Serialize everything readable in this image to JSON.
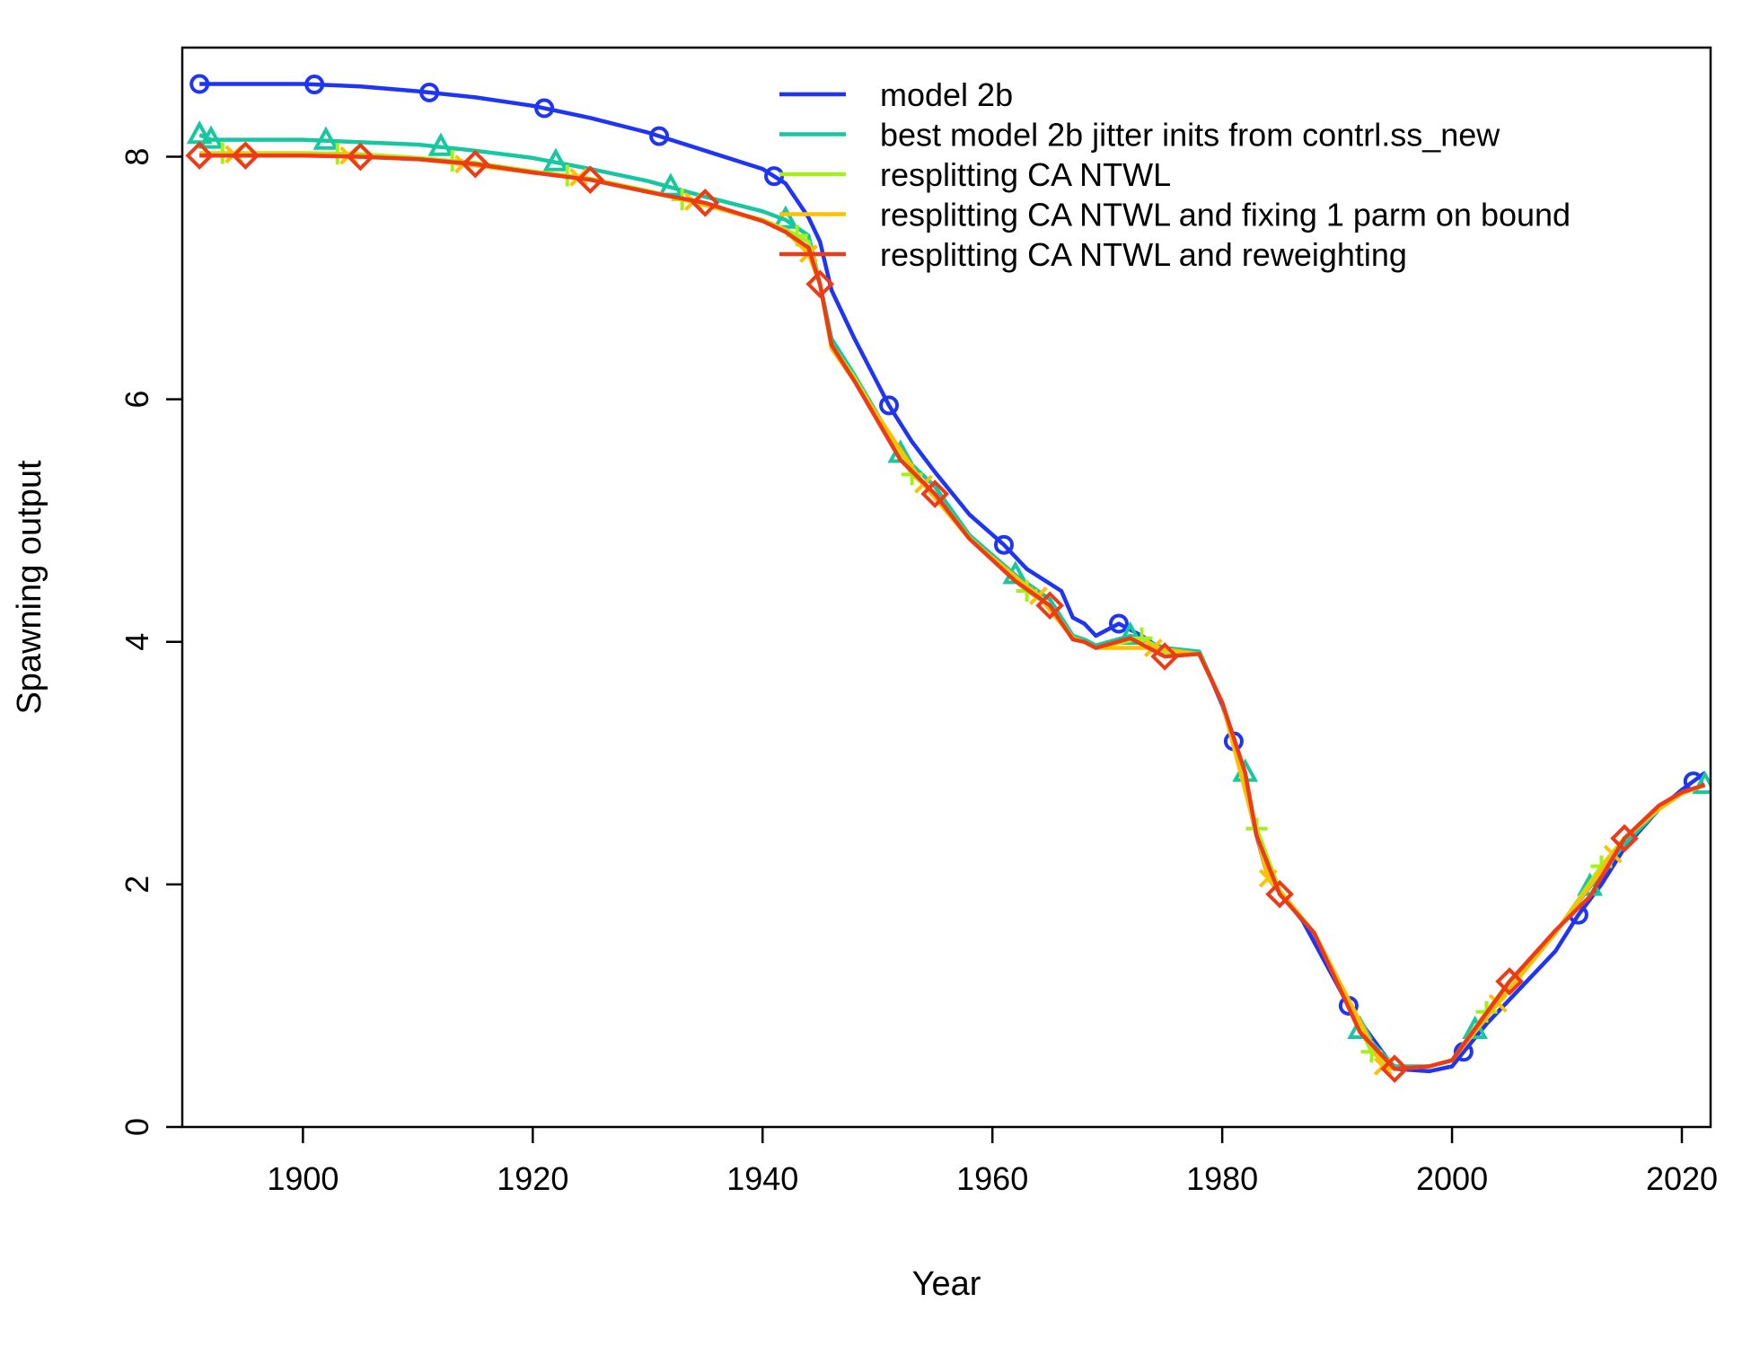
{
  "chart_data": {
    "type": "line",
    "title": "",
    "xlabel": "Year",
    "ylabel": "Spawning output",
    "xlim": [
      1889.5,
      2022.5
    ],
    "ylim": [
      0,
      8.9
    ],
    "xticks": [
      1900,
      1920,
      1940,
      1960,
      1980,
      2000,
      2020
    ],
    "yticks": [
      0,
      2,
      4,
      6,
      8
    ],
    "grid": false,
    "legend_position": "top-right",
    "series": [
      {
        "name": "model 2b",
        "color": "#1F35F5",
        "marker": "circle",
        "marker_x": [
          1891,
          1901,
          1911,
          1921,
          1931,
          1941,
          1951,
          1961,
          1971,
          1981,
          1991,
          2001,
          2011,
          2021
        ],
        "x": [
          1891,
          1895,
          1900,
          1905,
          1910,
          1915,
          1920,
          1925,
          1930,
          1935,
          1940,
          1942,
          1944,
          1945,
          1946,
          1948,
          1951,
          1953,
          1955,
          1958,
          1961,
          1963,
          1966,
          1967,
          1968,
          1969,
          1971,
          1973,
          1975,
          1978,
          1980,
          1981,
          1983,
          1984,
          1987,
          1991,
          1995,
          1998,
          2000,
          2001,
          2003,
          2006,
          2009,
          2011,
          2013,
          2015,
          2018,
          2020,
          2022
        ],
        "y": [
          8.6,
          8.6,
          8.6,
          8.58,
          8.54,
          8.49,
          8.42,
          8.32,
          8.2,
          8.05,
          7.9,
          7.78,
          7.5,
          7.3,
          6.9,
          6.5,
          5.95,
          5.65,
          5.4,
          5.05,
          4.8,
          4.6,
          4.42,
          4.2,
          4.15,
          4.05,
          4.15,
          4.05,
          3.92,
          3.92,
          3.48,
          3.18,
          2.4,
          2.05,
          1.7,
          1.0,
          0.48,
          0.46,
          0.5,
          0.62,
          0.85,
          1.15,
          1.45,
          1.75,
          2.0,
          2.3,
          2.62,
          2.78,
          2.92
        ]
      },
      {
        "name": "best model 2b jitter inits from contrl.ss_new",
        "color": "#17C7A0",
        "marker": "triangle",
        "marker_x": [
          1891,
          1892,
          1902,
          1912,
          1922,
          1932,
          1942,
          1952,
          1962,
          1972,
          1982,
          1992,
          2002,
          2012,
          2022
        ],
        "x": [
          1891,
          1892,
          1900,
          1910,
          1915,
          1920,
          1925,
          1930,
          1935,
          1940,
          1942,
          1944,
          1945,
          1946,
          1948,
          1952,
          1955,
          1958,
          1962,
          1965,
          1967,
          1968,
          1969,
          1972,
          1975,
          1978,
          1980,
          1982,
          1983,
          1985,
          1988,
          1992,
          1995,
          1998,
          2000,
          2002,
          2005,
          2009,
          2012,
          2015,
          2018,
          2020,
          2022
        ],
        "y": [
          8.18,
          8.14,
          8.14,
          8.1,
          8.05,
          7.99,
          7.9,
          7.8,
          7.67,
          7.55,
          7.48,
          7.35,
          6.95,
          6.5,
          6.2,
          5.55,
          5.28,
          4.88,
          4.55,
          4.35,
          4.05,
          4.02,
          3.97,
          4.05,
          3.95,
          3.92,
          3.5,
          2.92,
          2.4,
          1.95,
          1.6,
          0.8,
          0.5,
          0.5,
          0.55,
          0.8,
          1.2,
          1.6,
          1.98,
          2.33,
          2.62,
          2.76,
          2.82
        ]
      },
      {
        "name": "resplitting CA NTWL",
        "color": "#A3F01A",
        "marker": "plus",
        "marker_x": [
          1893,
          1903,
          1913,
          1923,
          1933,
          1943,
          1953,
          1963,
          1973,
          1983,
          1993,
          2003,
          2013
        ],
        "x": [
          1891,
          1893,
          1900,
          1905,
          1910,
          1915,
          1920,
          1925,
          1930,
          1935,
          1940,
          1942,
          1944,
          1945,
          1946,
          1948,
          1953,
          1955,
          1958,
          1963,
          1965,
          1967,
          1968,
          1969,
          1973,
          1975,
          1978,
          1980,
          1983,
          1985,
          1988,
          1993,
          1995,
          1998,
          2000,
          2003,
          2005,
          2009,
          2013,
          2015,
          2018,
          2020,
          2022
        ],
        "y": [
          8.03,
          8.03,
          8.03,
          8.02,
          7.99,
          7.95,
          7.88,
          7.82,
          7.72,
          7.6,
          7.48,
          7.4,
          7.3,
          6.95,
          6.45,
          6.18,
          5.38,
          5.22,
          4.86,
          4.42,
          4.3,
          4.03,
          4.0,
          3.95,
          4.03,
          3.92,
          3.9,
          3.5,
          2.46,
          1.95,
          1.6,
          0.62,
          0.48,
          0.5,
          0.55,
          0.95,
          1.2,
          1.6,
          2.15,
          2.38,
          2.62,
          2.75,
          2.82
        ]
      },
      {
        "name": "resplitting CA NTWL and fixing 1 parm on bound",
        "color": "#FFC000",
        "marker": "x",
        "marker_x": [
          1894,
          1904,
          1914,
          1924,
          1934,
          1944,
          1954,
          1964,
          1974,
          1984,
          1994,
          2004,
          2014
        ],
        "x": [
          1891,
          1894,
          1900,
          1904,
          1910,
          1914,
          1920,
          1924,
          1930,
          1934,
          1940,
          1942,
          1944,
          1945,
          1946,
          1948,
          1954,
          1958,
          1964,
          1967,
          1968,
          1969,
          1974,
          1978,
          1980,
          1984,
          1988,
          1994,
          1995,
          1998,
          2000,
          2004,
          2009,
          2014,
          2015,
          2018,
          2020,
          2022
        ],
        "y": [
          8.02,
          8.02,
          8.02,
          8.01,
          7.98,
          7.94,
          7.87,
          7.83,
          7.71,
          7.63,
          7.47,
          7.39,
          7.2,
          6.95,
          6.42,
          6.15,
          5.3,
          4.85,
          4.38,
          4.03,
          4.0,
          3.95,
          3.95,
          3.9,
          3.5,
          2.05,
          1.6,
          0.5,
          0.48,
          0.5,
          0.55,
          1.02,
          1.6,
          2.25,
          2.38,
          2.62,
          2.75,
          2.82
        ]
      },
      {
        "name": "resplitting CA NTWL and reweighting",
        "color": "#EE3A16",
        "marker": "diamond",
        "marker_x": [
          1891,
          1895,
          1905,
          1915,
          1925,
          1935,
          1945,
          1955,
          1965,
          1975,
          1985,
          1995,
          2005,
          2015
        ],
        "x": [
          1891,
          1895,
          1900,
          1905,
          1910,
          1915,
          1920,
          1925,
          1930,
          1935,
          1940,
          1942,
          1944,
          1945,
          1946,
          1948,
          1952,
          1955,
          1958,
          1962,
          1965,
          1967,
          1968,
          1969,
          1972,
          1975,
          1978,
          1980,
          1982,
          1983,
          1985,
          1988,
          1992,
          1995,
          1998,
          2000,
          2005,
          2009,
          2012,
          2015,
          2018,
          2020,
          2022
        ],
        "y": [
          8.01,
          8.01,
          8.01,
          8.0,
          7.98,
          7.94,
          7.87,
          7.81,
          7.71,
          7.62,
          7.47,
          7.38,
          7.25,
          6.95,
          6.45,
          6.15,
          5.5,
          5.22,
          4.85,
          4.5,
          4.3,
          4.02,
          4.0,
          3.95,
          4.03,
          3.88,
          3.9,
          3.5,
          2.92,
          2.4,
          1.92,
          1.6,
          0.78,
          0.48,
          0.5,
          0.55,
          1.2,
          1.62,
          1.9,
          2.38,
          2.65,
          2.76,
          2.82
        ]
      }
    ]
  }
}
